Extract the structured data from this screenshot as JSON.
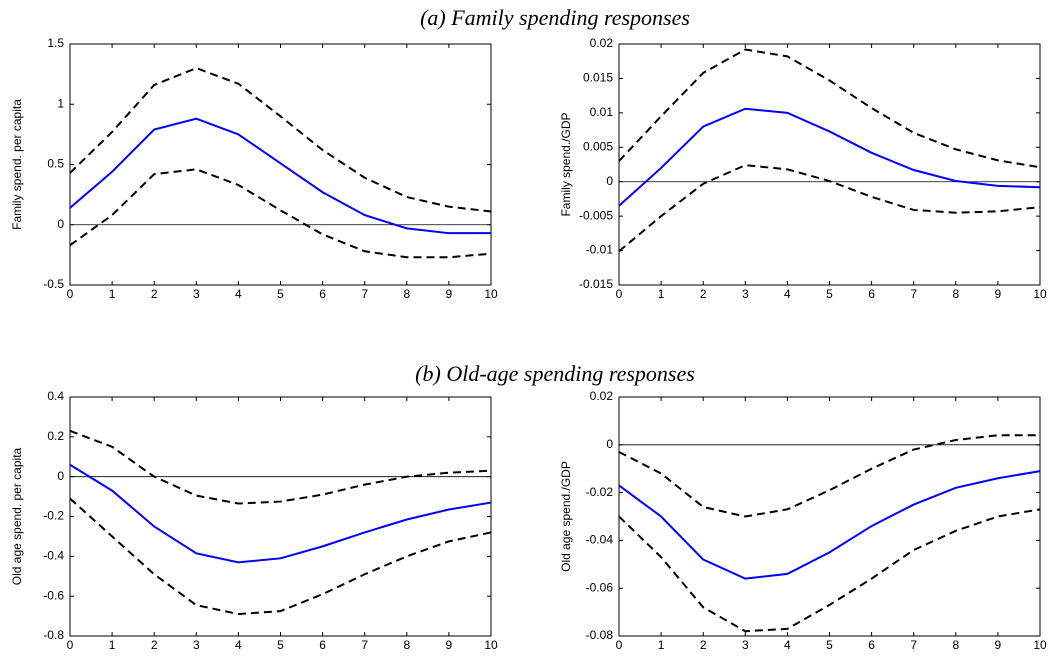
{
  "headings": [
    "(a) Family spending responses",
    "(b) Old-age spending responses"
  ],
  "chart_data": [
    {
      "type": "line",
      "ylabel": "Family spend. per capita",
      "x": [
        0,
        1,
        2,
        3,
        4,
        5,
        6,
        7,
        8,
        9,
        10
      ],
      "xlim": [
        0,
        10
      ],
      "xticks": [
        0,
        1,
        2,
        3,
        4,
        5,
        6,
        7,
        8,
        9,
        10
      ],
      "ylim": [
        -0.5,
        1.5
      ],
      "yticks": [
        -0.5,
        0,
        0.5,
        1,
        1.5
      ],
      "zero_line": true,
      "series": [
        {
          "color": "#0000ff",
          "dashed": false,
          "values": [
            0.14,
            0.44,
            0.79,
            0.88,
            0.75,
            0.51,
            0.27,
            0.08,
            -0.03,
            -0.07,
            -0.07
          ]
        },
        {
          "color": "#000000",
          "dashed": true,
          "values": [
            0.43,
            0.77,
            1.16,
            1.3,
            1.17,
            0.9,
            0.62,
            0.39,
            0.23,
            0.15,
            0.11
          ]
        },
        {
          "color": "#000000",
          "dashed": true,
          "values": [
            -0.17,
            0.08,
            0.42,
            0.46,
            0.33,
            0.12,
            -0.08,
            -0.22,
            -0.27,
            -0.27,
            -0.24
          ]
        }
      ]
    },
    {
      "type": "line",
      "ylabel": "Family spend./GDP",
      "x": [
        0,
        1,
        2,
        3,
        4,
        5,
        6,
        7,
        8,
        9,
        10
      ],
      "xlim": [
        0,
        10
      ],
      "xticks": [
        0,
        1,
        2,
        3,
        4,
        5,
        6,
        7,
        8,
        9,
        10
      ],
      "ylim": [
        -0.015,
        0.02
      ],
      "yticks": [
        -0.015,
        -0.01,
        -0.005,
        0,
        0.005,
        0.01,
        0.015,
        0.02
      ],
      "zero_line": true,
      "series": [
        {
          "color": "#0000ff",
          "dashed": false,
          "values": [
            -0.0035,
            0.002,
            0.008,
            0.0106,
            0.01,
            0.0073,
            0.0042,
            0.0017,
            0.0001,
            -0.0006,
            -0.0008
          ]
        },
        {
          "color": "#000000",
          "dashed": true,
          "values": [
            0.003,
            0.0095,
            0.0158,
            0.0192,
            0.0182,
            0.0147,
            0.0107,
            0.0071,
            0.0047,
            0.0031,
            0.0021
          ]
        },
        {
          "color": "#000000",
          "dashed": true,
          "values": [
            -0.0101,
            -0.005,
            -0.0003,
            0.0024,
            0.0018,
            0.0001,
            -0.0022,
            -0.0041,
            -0.0045,
            -0.0043,
            -0.0037
          ]
        }
      ]
    },
    {
      "type": "line",
      "ylabel": "Old age spend. per capita",
      "x": [
        0,
        1,
        2,
        3,
        4,
        5,
        6,
        7,
        8,
        9,
        10
      ],
      "xlim": [
        0,
        10
      ],
      "xticks": [
        0,
        1,
        2,
        3,
        4,
        5,
        6,
        7,
        8,
        9,
        10
      ],
      "ylim": [
        -0.8,
        0.4
      ],
      "yticks": [
        -0.8,
        -0.6,
        -0.4,
        -0.2,
        0,
        0.2,
        0.4
      ],
      "zero_line": true,
      "series": [
        {
          "color": "#0000ff",
          "dashed": false,
          "values": [
            0.06,
            -0.07,
            -0.25,
            -0.385,
            -0.43,
            -0.41,
            -0.35,
            -0.28,
            -0.215,
            -0.165,
            -0.13
          ]
        },
        {
          "color": "#000000",
          "dashed": true,
          "values": [
            0.23,
            0.15,
            0.0,
            -0.095,
            -0.135,
            -0.125,
            -0.09,
            -0.04,
            0.0,
            0.02,
            0.03
          ]
        },
        {
          "color": "#000000",
          "dashed": true,
          "values": [
            -0.11,
            -0.3,
            -0.49,
            -0.645,
            -0.69,
            -0.675,
            -0.59,
            -0.49,
            -0.4,
            -0.325,
            -0.28
          ]
        }
      ]
    },
    {
      "type": "line",
      "ylabel": "Old age spend./GDP",
      "x": [
        0,
        1,
        2,
        3,
        4,
        5,
        6,
        7,
        8,
        9,
        10
      ],
      "xlim": [
        0,
        10
      ],
      "xticks": [
        0,
        1,
        2,
        3,
        4,
        5,
        6,
        7,
        8,
        9,
        10
      ],
      "ylim": [
        -0.08,
        0.02
      ],
      "yticks": [
        -0.08,
        -0.06,
        -0.04,
        -0.02,
        0,
        0.02
      ],
      "zero_line": true,
      "series": [
        {
          "color": "#0000ff",
          "dashed": false,
          "values": [
            -0.017,
            -0.03,
            -0.048,
            -0.056,
            -0.054,
            -0.045,
            -0.034,
            -0.025,
            -0.018,
            -0.014,
            -0.011
          ]
        },
        {
          "color": "#000000",
          "dashed": true,
          "values": [
            -0.003,
            -0.012,
            -0.026,
            -0.03,
            -0.027,
            -0.019,
            -0.01,
            -0.002,
            0.002,
            0.004,
            0.004
          ]
        },
        {
          "color": "#000000",
          "dashed": true,
          "values": [
            -0.03,
            -0.047,
            -0.068,
            -0.078,
            -0.077,
            -0.067,
            -0.056,
            -0.044,
            -0.036,
            -0.03,
            -0.027
          ]
        }
      ]
    }
  ]
}
